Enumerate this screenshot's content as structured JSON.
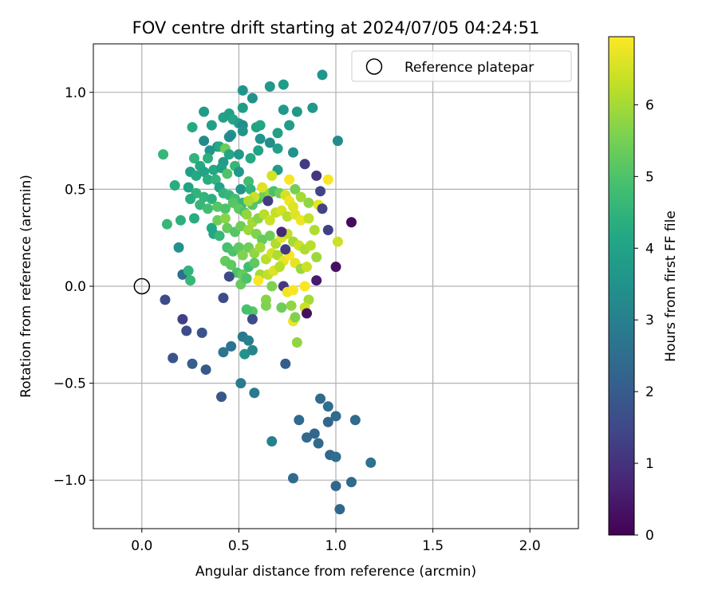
{
  "chart_data": {
    "type": "scatter",
    "title": "FOV centre drift starting at 2024/07/05 04:24:51",
    "xlabel": "Angular distance from reference (arcmin)",
    "ylabel": "Rotation from reference (arcmin)",
    "xlim": [
      -0.25,
      2.25
    ],
    "ylim": [
      -1.25,
      1.25
    ],
    "xticks": [
      0.0,
      0.5,
      1.0,
      1.5,
      2.0
    ],
    "xtick_labels": [
      "0.0",
      "0.5",
      "1.0",
      "1.5",
      "2.0"
    ],
    "yticks": [
      -1.0,
      -0.5,
      0.0,
      0.5,
      1.0
    ],
    "ytick_labels": [
      "−1.0",
      "−0.5",
      "0.0",
      "0.5",
      "1.0"
    ],
    "grid": true,
    "legend": {
      "position": "top-right",
      "entries": [
        "Reference platepar"
      ]
    },
    "reference_point": {
      "x": 0.0,
      "y": 0.0,
      "label": "Reference platepar"
    },
    "colorbar": {
      "label": "Hours from first FF file",
      "min": 0,
      "max": 6.95,
      "ticks": [
        0,
        1,
        2,
        3,
        4,
        5,
        6
      ],
      "tick_labels": [
        "0",
        "1",
        "2",
        "3",
        "4",
        "5",
        "6"
      ],
      "colormap": "viridis"
    },
    "points": [
      [
        0.93,
        1.09,
        3.6
      ],
      [
        0.73,
        1.04,
        3.8
      ],
      [
        0.66,
        1.03,
        3.7
      ],
      [
        0.52,
        1.01,
        3.6
      ],
      [
        0.57,
        0.97,
        3.5
      ],
      [
        0.32,
        0.9,
        3.8
      ],
      [
        0.52,
        0.92,
        3.8
      ],
      [
        0.73,
        0.91,
        3.7
      ],
      [
        0.88,
        0.92,
        3.7
      ],
      [
        0.8,
        0.9,
        3.7
      ],
      [
        0.42,
        0.87,
        4.0
      ],
      [
        0.45,
        0.89,
        3.9
      ],
      [
        0.47,
        0.86,
        4.1
      ],
      [
        0.5,
        0.84,
        3.9
      ],
      [
        0.52,
        0.83,
        3.4
      ],
      [
        0.26,
        0.82,
        4.2
      ],
      [
        0.36,
        0.83,
        3.9
      ],
      [
        0.59,
        0.82,
        4.0
      ],
      [
        0.61,
        0.83,
        4.1
      ],
      [
        0.76,
        0.83,
        3.8
      ],
      [
        0.7,
        0.79,
        3.9
      ],
      [
        0.46,
        0.78,
        3.6
      ],
      [
        0.52,
        0.8,
        3.6
      ],
      [
        0.45,
        0.77,
        3.3
      ],
      [
        0.61,
        0.76,
        3.6
      ],
      [
        0.66,
        0.74,
        3.4
      ],
      [
        0.32,
        0.75,
        3.3
      ],
      [
        0.39,
        0.72,
        3.4
      ],
      [
        0.6,
        0.7,
        4.0
      ],
      [
        0.7,
        0.71,
        3.9
      ],
      [
        0.78,
        0.69,
        3.5
      ],
      [
        1.01,
        0.75,
        3.3
      ],
      [
        0.11,
        0.68,
        4.6
      ],
      [
        0.35,
        0.7,
        3.6
      ],
      [
        0.4,
        0.72,
        4.2
      ],
      [
        0.43,
        0.71,
        5.4
      ],
      [
        0.45,
        0.68,
        4.1
      ],
      [
        0.5,
        0.68,
        3.7
      ],
      [
        0.56,
        0.66,
        4.2
      ],
      [
        0.27,
        0.66,
        4.5
      ],
      [
        0.3,
        0.62,
        4.2
      ],
      [
        0.34,
        0.66,
        4.4
      ],
      [
        0.42,
        0.64,
        3.8
      ],
      [
        0.48,
        0.62,
        4.6
      ],
      [
        0.37,
        0.6,
        4.2
      ],
      [
        0.41,
        0.61,
        3.9
      ],
      [
        0.44,
        0.58,
        5.0
      ],
      [
        0.5,
        0.59,
        3.7
      ],
      [
        0.25,
        0.59,
        3.9
      ],
      [
        0.28,
        0.57,
        4.2
      ],
      [
        0.32,
        0.59,
        4.0
      ],
      [
        0.34,
        0.55,
        4.3
      ],
      [
        0.38,
        0.55,
        4.5
      ],
      [
        0.55,
        0.54,
        4.8
      ],
      [
        0.7,
        0.6,
        3.8
      ],
      [
        0.17,
        0.52,
        4.3
      ],
      [
        0.24,
        0.51,
        4.0
      ],
      [
        0.4,
        0.51,
        4.0
      ],
      [
        0.51,
        0.5,
        3.6
      ],
      [
        0.56,
        0.5,
        4.5
      ],
      [
        0.28,
        0.48,
        4.5
      ],
      [
        0.32,
        0.46,
        4.5
      ],
      [
        0.36,
        0.45,
        4.4
      ],
      [
        0.42,
        0.48,
        4.5
      ],
      [
        0.45,
        0.47,
        4.6
      ],
      [
        0.48,
        0.45,
        4.8
      ],
      [
        0.52,
        0.43,
        4.6
      ],
      [
        0.25,
        0.45,
        4.3
      ],
      [
        0.3,
        0.42,
        4.6
      ],
      [
        0.34,
        0.4,
        4.8
      ],
      [
        0.39,
        0.41,
        5.1
      ],
      [
        0.43,
        0.4,
        5.0
      ],
      [
        0.47,
        0.43,
        5.1
      ],
      [
        0.5,
        0.4,
        5.2
      ],
      [
        0.53,
        0.38,
        5.0
      ],
      [
        0.57,
        0.42,
        5.1
      ],
      [
        0.6,
        0.45,
        5.0
      ],
      [
        0.63,
        0.47,
        5.4
      ],
      [
        0.66,
        0.48,
        5.8
      ],
      [
        0.68,
        0.49,
        4.9
      ],
      [
        0.71,
        0.48,
        5.4
      ],
      [
        0.74,
        0.47,
        6.5
      ],
      [
        0.76,
        0.44,
        6.8
      ],
      [
        0.78,
        0.41,
        6.6
      ],
      [
        0.65,
        0.44,
        1.2
      ],
      [
        0.76,
        0.55,
        6.9
      ],
      [
        0.79,
        0.5,
        5.5
      ],
      [
        0.82,
        0.46,
        6.0
      ],
      [
        0.86,
        0.43,
        5.8
      ],
      [
        0.91,
        0.42,
        6.7
      ],
      [
        0.93,
        0.4,
        1.4
      ],
      [
        0.96,
        0.55,
        6.9
      ],
      [
        0.9,
        0.57,
        1.1
      ],
      [
        0.84,
        0.63,
        1.2
      ],
      [
        0.92,
        0.49,
        1.4
      ],
      [
        0.67,
        0.57,
        6.5
      ],
      [
        0.62,
        0.51,
        6.6
      ],
      [
        0.58,
        0.46,
        6.4
      ],
      [
        0.55,
        0.44,
        6.1
      ],
      [
        0.54,
        0.37,
        5.8
      ],
      [
        0.57,
        0.33,
        6.0
      ],
      [
        0.6,
        0.35,
        5.7
      ],
      [
        0.63,
        0.37,
        6.2
      ],
      [
        0.66,
        0.34,
        6.4
      ],
      [
        0.69,
        0.38,
        6.3
      ],
      [
        0.72,
        0.39,
        6.5
      ],
      [
        0.75,
        0.36,
        6.2
      ],
      [
        0.79,
        0.37,
        6.6
      ],
      [
        0.82,
        0.34,
        6.8
      ],
      [
        0.86,
        0.35,
        6.3
      ],
      [
        0.89,
        0.29,
        6.1
      ],
      [
        0.96,
        0.29,
        1.3
      ],
      [
        1.08,
        0.33,
        0.2
      ],
      [
        1.01,
        0.23,
        6.4
      ],
      [
        0.2,
        0.34,
        4.4
      ],
      [
        0.13,
        0.32,
        4.6
      ],
      [
        0.27,
        0.35,
        4.3
      ],
      [
        0.36,
        0.3,
        4.2
      ],
      [
        0.39,
        0.34,
        5.4
      ],
      [
        0.43,
        0.35,
        5.7
      ],
      [
        0.44,
        0.3,
        5.3
      ],
      [
        0.48,
        0.28,
        5.1
      ],
      [
        0.51,
        0.31,
        5.4
      ],
      [
        0.55,
        0.29,
        5.9
      ],
      [
        0.59,
        0.27,
        5.6
      ],
      [
        0.62,
        0.24,
        5.3
      ],
      [
        0.66,
        0.26,
        5.4
      ],
      [
        0.69,
        0.22,
        6.1
      ],
      [
        0.72,
        0.25,
        6.6
      ],
      [
        0.75,
        0.27,
        6.3
      ],
      [
        0.78,
        0.23,
        6.0
      ],
      [
        0.81,
        0.21,
        6.4
      ],
      [
        0.84,
        0.19,
        6.1
      ],
      [
        0.87,
        0.21,
        6.2
      ],
      [
        0.9,
        0.15,
        5.9
      ],
      [
        0.37,
        0.27,
        4.1
      ],
      [
        0.4,
        0.26,
        4.6
      ],
      [
        0.44,
        0.2,
        4.9
      ],
      [
        0.47,
        0.18,
        5.0
      ],
      [
        0.5,
        0.2,
        5.2
      ],
      [
        0.52,
        0.16,
        5.6
      ],
      [
        0.55,
        0.2,
        5.4
      ],
      [
        0.58,
        0.17,
        5.8
      ],
      [
        0.61,
        0.2,
        6.0
      ],
      [
        0.64,
        0.14,
        6.2
      ],
      [
        0.67,
        0.17,
        6.5
      ],
      [
        0.7,
        0.16,
        6.1
      ],
      [
        0.73,
        0.13,
        6.7
      ],
      [
        0.76,
        0.16,
        6.9
      ],
      [
        0.79,
        0.12,
        6.7
      ],
      [
        0.82,
        0.09,
        5.9
      ],
      [
        0.85,
        0.1,
        6.4
      ],
      [
        1.0,
        0.1,
        0.3
      ],
      [
        0.74,
        0.19,
        1.2
      ],
      [
        0.72,
        0.28,
        0.8
      ],
      [
        0.43,
        0.13,
        5.3
      ],
      [
        0.46,
        0.11,
        5.2
      ],
      [
        0.49,
        0.07,
        5.0
      ],
      [
        0.52,
        0.06,
        5.3
      ],
      [
        0.55,
        0.1,
        4.8
      ],
      [
        0.58,
        0.12,
        5.2
      ],
      [
        0.61,
        0.06,
        6.0
      ],
      [
        0.65,
        0.06,
        6.3
      ],
      [
        0.68,
        0.08,
        6.6
      ],
      [
        0.71,
        0.1,
        6.2
      ],
      [
        0.51,
        0.01,
        5.3
      ],
      [
        0.54,
        0.04,
        5.0
      ],
      [
        0.6,
        0.03,
        6.9
      ],
      [
        0.67,
        0.0,
        5.6
      ],
      [
        0.73,
        0.0,
        1.1
      ],
      [
        0.75,
        -0.03,
        6.8
      ],
      [
        0.78,
        -0.02,
        6.9
      ],
      [
        0.84,
        0.0,
        6.9
      ],
      [
        0.9,
        0.03,
        0.5
      ],
      [
        0.86,
        -0.07,
        6.0
      ],
      [
        0.84,
        -0.11,
        6.4
      ],
      [
        0.77,
        -0.1,
        5.8
      ],
      [
        0.72,
        -0.11,
        5.4
      ],
      [
        0.64,
        -0.07,
        5.7
      ],
      [
        0.64,
        -0.1,
        5.6
      ],
      [
        0.57,
        -0.13,
        5.1
      ],
      [
        0.54,
        -0.12,
        4.9
      ],
      [
        0.78,
        -0.18,
        6.8
      ],
      [
        0.85,
        -0.14,
        0.3
      ],
      [
        0.79,
        -0.16,
        5.6
      ],
      [
        0.8,
        -0.29,
        5.8
      ],
      [
        0.57,
        -0.17,
        1.6
      ],
      [
        0.21,
        0.06,
        2.5
      ],
      [
        0.24,
        0.08,
        4.5
      ],
      [
        0.25,
        0.03,
        4.6
      ],
      [
        0.19,
        0.2,
        3.5
      ],
      [
        0.12,
        -0.07,
        1.6
      ],
      [
        0.21,
        -0.17,
        1.3
      ],
      [
        0.23,
        -0.23,
        1.6
      ],
      [
        0.31,
        -0.24,
        1.8
      ],
      [
        0.42,
        -0.06,
        1.6
      ],
      [
        0.45,
        0.05,
        1.6
      ],
      [
        0.16,
        -0.37,
        1.8
      ],
      [
        0.26,
        -0.4,
        2.1
      ],
      [
        0.33,
        -0.43,
        1.9
      ],
      [
        0.42,
        -0.34,
        2.7
      ],
      [
        0.46,
        -0.31,
        2.6
      ],
      [
        0.52,
        -0.26,
        2.8
      ],
      [
        0.55,
        -0.28,
        3.0
      ],
      [
        0.57,
        -0.33,
        3.1
      ],
      [
        0.53,
        -0.35,
        3.5
      ],
      [
        0.74,
        -0.4,
        2.0
      ],
      [
        0.41,
        -0.57,
        1.9
      ],
      [
        0.51,
        -0.5,
        2.9
      ],
      [
        0.58,
        -0.55,
        2.8
      ],
      [
        0.67,
        -0.8,
        3.0
      ],
      [
        0.81,
        -0.69,
        2.4
      ],
      [
        0.85,
        -0.78,
        2.4
      ],
      [
        0.89,
        -0.76,
        2.3
      ],
      [
        0.91,
        -0.81,
        2.4
      ],
      [
        0.92,
        -0.58,
        2.4
      ],
      [
        0.96,
        -0.62,
        2.5
      ],
      [
        0.96,
        -0.7,
        2.3
      ],
      [
        1.0,
        -0.67,
        2.4
      ],
      [
        1.1,
        -0.69,
        2.4
      ],
      [
        0.97,
        -0.87,
        2.3
      ],
      [
        1.0,
        -0.88,
        2.5
      ],
      [
        1.18,
        -0.91,
        2.6
      ],
      [
        0.78,
        -0.99,
        2.4
      ],
      [
        1.0,
        -1.03,
        2.3
      ],
      [
        1.08,
        -1.01,
        2.4
      ],
      [
        1.02,
        -1.15,
        2.3
      ]
    ]
  }
}
